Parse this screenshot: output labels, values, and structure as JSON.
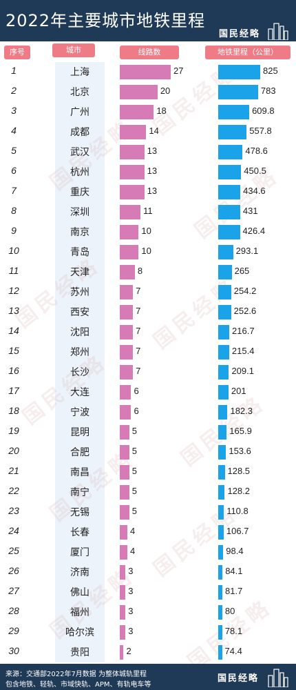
{
  "header": {
    "title": "2022年主要城市地铁里程",
    "brand": "国民经略"
  },
  "columns": {
    "rank": "序号",
    "city": "城市",
    "lines": "线路数",
    "length": "地铁里程（公里）"
  },
  "colors": {
    "header_bg": "#1f3a56",
    "pill": "#ef7b86",
    "lines_bar": "#d67bb5",
    "length_bar": "#1aa3e8"
  },
  "chart_data": {
    "type": "bar",
    "title": "2022年主要城市地铁里程",
    "categories": [
      "上海",
      "北京",
      "广州",
      "成都",
      "武汉",
      "杭州",
      "重庆",
      "深圳",
      "南京",
      "青岛",
      "天津",
      "苏州",
      "西安",
      "沈阳",
      "郑州",
      "长沙",
      "大连",
      "宁波",
      "昆明",
      "合肥",
      "南昌",
      "南宁",
      "无锡",
      "长春",
      "厦门",
      "济南",
      "佛山",
      "福州",
      "哈尔滨",
      "贵阳"
    ],
    "ranks": [
      "1",
      "2",
      "3",
      "4",
      "5",
      "6",
      "7",
      "8",
      "9",
      "10",
      "11",
      "12",
      "13",
      "14",
      "15",
      "16",
      "17",
      "18",
      "19",
      "20",
      "21",
      "22",
      "23",
      "24",
      "25",
      "26",
      "27",
      "28",
      "29",
      "30"
    ],
    "series": [
      {
        "name": "线路数",
        "values": [
          27,
          20,
          18,
          14,
          13,
          13,
          13,
          11,
          10,
          10,
          8,
          7,
          7,
          7,
          7,
          7,
          6,
          6,
          5,
          5,
          5,
          5,
          5,
          4,
          4,
          3,
          3,
          3,
          3,
          2
        ]
      },
      {
        "name": "地铁里程（公里）",
        "values": [
          825,
          783,
          609.8,
          557.8,
          478.6,
          450.5,
          434.6,
          431,
          426.4,
          293.1,
          265,
          254.2,
          252.6,
          216.7,
          215.4,
          209.1,
          201,
          182.3,
          165.9,
          153.6,
          128.5,
          128.2,
          110.8,
          106.7,
          98.4,
          84.1,
          81.7,
          80,
          78.1,
          74.4
        ]
      }
    ],
    "xlabel": "",
    "ylabel": "",
    "xlim_lines": [
      0,
      27
    ],
    "xlim_length": [
      0,
      825
    ],
    "grid": false,
    "legend": "none"
  },
  "footer": {
    "source_line1": "来源：交通部2022年7月数据 为整体城轨里程",
    "source_line2": "包含地铁、轻轨、市域快轨、APM、有轨电车等",
    "brand": "国民经略"
  },
  "watermark": {
    "text": "国民经略"
  }
}
